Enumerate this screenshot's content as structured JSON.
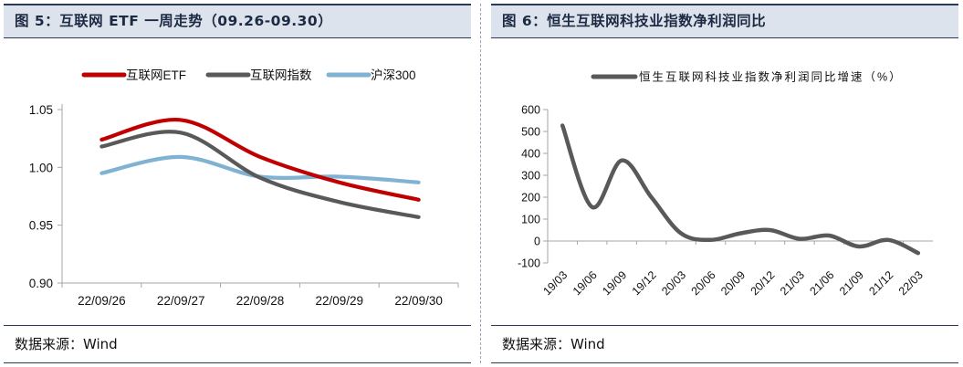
{
  "left_panel": {
    "title": "图 5：互联网 ETF 一周走势（09.26-09.30）",
    "source": "数据来源：Wind"
  },
  "right_panel": {
    "title": "图 6：恒生互联网科技业指数净利润同比",
    "source": "数据来源：Wind"
  },
  "colors": {
    "etf": "#c00000",
    "index": "#595959",
    "hs300": "#7fb2d3",
    "profit": "#595959",
    "axis": "#a6a6a6"
  },
  "chart_data": [
    {
      "type": "line",
      "title": "",
      "xlabel": "",
      "ylabel": "",
      "categories": [
        "22/09/26",
        "22/09/27",
        "22/09/28",
        "22/09/29",
        "22/09/30"
      ],
      "ylim": [
        0.9,
        1.05
      ],
      "yticks": [
        "0.90",
        "0.95",
        "1.00",
        "1.05"
      ],
      "grid": false,
      "legend": "top",
      "series": [
        {
          "name": "互联网ETF",
          "color_key": "etf",
          "values": [
            1.024,
            1.041,
            1.009,
            0.987,
            0.972
          ]
        },
        {
          "name": "互联网指数",
          "color_key": "index",
          "values": [
            1.018,
            1.03,
            0.991,
            0.97,
            0.957
          ]
        },
        {
          "name": "沪深300",
          "color_key": "hs300",
          "values": [
            0.995,
            1.009,
            0.992,
            0.992,
            0.987
          ]
        }
      ]
    },
    {
      "type": "line",
      "title": "",
      "xlabel": "",
      "ylabel": "",
      "categories": [
        "19/03",
        "19/06",
        "19/09",
        "19/12",
        "20/03",
        "20/06",
        "20/09",
        "20/12",
        "21/03",
        "21/06",
        "21/09",
        "21/12",
        "22/03"
      ],
      "ylim": [
        -100,
        600
      ],
      "yticks": [
        "-100",
        "0",
        "100",
        "200",
        "300",
        "400",
        "500",
        "600"
      ],
      "grid": false,
      "legend": "top",
      "series": [
        {
          "name": "恒生互联网科技业指数净利润同比增速（%）",
          "color_key": "profit",
          "values": [
            527,
            155,
            368,
            200,
            35,
            5,
            35,
            50,
            10,
            25,
            -25,
            5,
            -55
          ]
        }
      ]
    }
  ]
}
